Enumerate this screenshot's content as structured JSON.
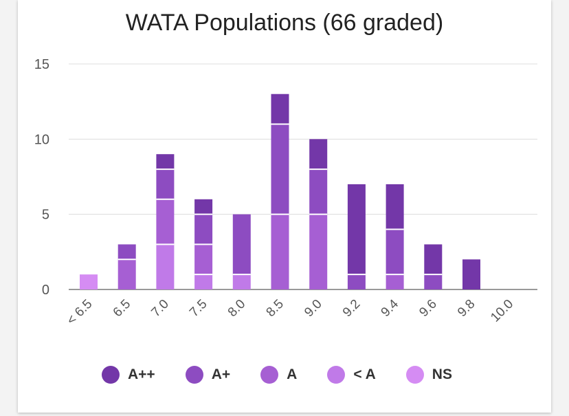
{
  "chart_data": {
    "type": "bar",
    "stacked": true,
    "title": "WATA Populations (66 graded)",
    "xlabel": "",
    "ylabel": "",
    "ylim": [
      0,
      15
    ],
    "yticks": [
      0,
      5,
      10,
      15
    ],
    "grid": true,
    "legend_position": "bottom",
    "categories": [
      "< 6.5",
      "6.5",
      "7.0",
      "7.5",
      "8.0",
      "8.5",
      "9.0",
      "9.2",
      "9.4",
      "9.6",
      "9.8",
      "10.0"
    ],
    "series": [
      {
        "name": "NS",
        "color": "#d58cf3",
        "values": [
          1,
          0,
          0,
          0,
          0,
          0,
          0,
          0,
          0,
          0,
          0,
          0
        ]
      },
      {
        "name": "< A",
        "color": "#c07ae8",
        "values": [
          0,
          0,
          3,
          1,
          1,
          0,
          0,
          0,
          0,
          0,
          0,
          0
        ]
      },
      {
        "name": "A",
        "color": "#a65fd3",
        "values": [
          0,
          2,
          3,
          2,
          0,
          5,
          5,
          0,
          1,
          0,
          0,
          0
        ]
      },
      {
        "name": "A+",
        "color": "#8d4cc1",
        "values": [
          0,
          1,
          2,
          2,
          4,
          6,
          3,
          1,
          3,
          1,
          0,
          0
        ]
      },
      {
        "name": "A++",
        "color": "#7337a8",
        "values": [
          0,
          0,
          1,
          1,
          0,
          2,
          2,
          6,
          3,
          2,
          2,
          0
        ]
      }
    ],
    "legend_order": [
      "A++",
      "A+",
      "A",
      "< A",
      "NS"
    ]
  }
}
